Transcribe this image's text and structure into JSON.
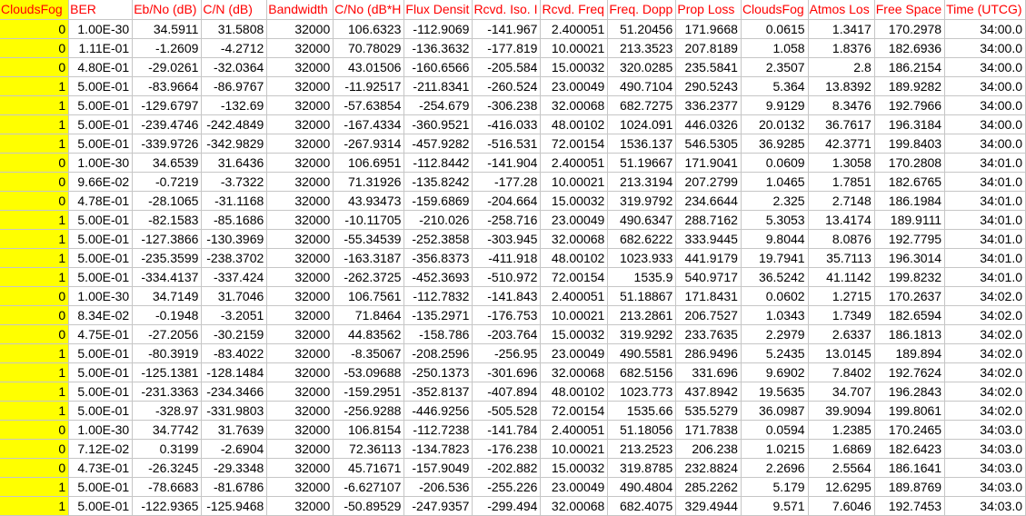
{
  "sheet": {
    "highlight_color": "#ffff00",
    "header_color": "#ff0000",
    "headers": [
      "CloudsFog",
      "BER",
      "Eb/No (dB)",
      "C/N (dB)",
      "Bandwidth",
      "C/No (dB*H",
      "Flux Densit",
      "Rcvd. Iso. I",
      "Rcvd. Freq",
      "Freq. Dopp",
      "Prop Loss",
      "CloudsFog",
      "Atmos Los",
      "Free Space",
      "Time (UTCG)"
    ],
    "rows": [
      [
        "0",
        "1.00E-30",
        "34.5911",
        "31.5808",
        "32000",
        "106.6323",
        "-112.9069",
        "-141.967",
        "2.400051",
        "51.20456",
        "171.9668",
        "0.0615",
        "1.3417",
        "170.2978",
        "34:00.0"
      ],
      [
        "0",
        "1.11E-01",
        "-1.2609",
        "-4.2712",
        "32000",
        "70.78029",
        "-136.3632",
        "-177.819",
        "10.00021",
        "213.3523",
        "207.8189",
        "1.058",
        "1.8376",
        "182.6936",
        "34:00.0"
      ],
      [
        "0",
        "4.80E-01",
        "-29.0261",
        "-32.0364",
        "32000",
        "43.01506",
        "-160.6566",
        "-205.584",
        "15.00032",
        "320.0285",
        "235.5841",
        "2.3507",
        "2.8",
        "186.2154",
        "34:00.0"
      ],
      [
        "1",
        "5.00E-01",
        "-83.9664",
        "-86.9767",
        "32000",
        "-11.92517",
        "-211.8341",
        "-260.524",
        "23.00049",
        "490.7104",
        "290.5243",
        "5.364",
        "13.8392",
        "189.9282",
        "34:00.0"
      ],
      [
        "1",
        "5.00E-01",
        "-129.6797",
        "-132.69",
        "32000",
        "-57.63854",
        "-254.679",
        "-306.238",
        "32.00068",
        "682.7275",
        "336.2377",
        "9.9129",
        "8.3476",
        "192.7966",
        "34:00.0"
      ],
      [
        "1",
        "5.00E-01",
        "-239.4746",
        "-242.4849",
        "32000",
        "-167.4334",
        "-360.9521",
        "-416.033",
        "48.00102",
        "1024.091",
        "446.0326",
        "20.0132",
        "36.7617",
        "196.3184",
        "34:00.0"
      ],
      [
        "1",
        "5.00E-01",
        "-339.9726",
        "-342.9829",
        "32000",
        "-267.9314",
        "-457.9282",
        "-516.531",
        "72.00154",
        "1536.137",
        "546.5305",
        "36.9285",
        "42.3771",
        "199.8403",
        "34:00.0"
      ],
      [
        "0",
        "1.00E-30",
        "34.6539",
        "31.6436",
        "32000",
        "106.6951",
        "-112.8442",
        "-141.904",
        "2.400051",
        "51.19667",
        "171.9041",
        "0.0609",
        "1.3058",
        "170.2808",
        "34:01.0"
      ],
      [
        "0",
        "9.66E-02",
        "-0.7219",
        "-3.7322",
        "32000",
        "71.31926",
        "-135.8242",
        "-177.28",
        "10.00021",
        "213.3194",
        "207.2799",
        "1.0465",
        "1.7851",
        "182.6765",
        "34:01.0"
      ],
      [
        "0",
        "4.78E-01",
        "-28.1065",
        "-31.1168",
        "32000",
        "43.93473",
        "-159.6869",
        "-204.664",
        "15.00032",
        "319.9792",
        "234.6644",
        "2.325",
        "2.7148",
        "186.1984",
        "34:01.0"
      ],
      [
        "1",
        "5.00E-01",
        "-82.1583",
        "-85.1686",
        "32000",
        "-10.11705",
        "-210.026",
        "-258.716",
        "23.00049",
        "490.6347",
        "288.7162",
        "5.3053",
        "13.4174",
        "189.9111",
        "34:01.0"
      ],
      [
        "1",
        "5.00E-01",
        "-127.3866",
        "-130.3969",
        "32000",
        "-55.34539",
        "-252.3858",
        "-303.945",
        "32.00068",
        "682.6222",
        "333.9445",
        "9.8044",
        "8.0876",
        "192.7795",
        "34:01.0"
      ],
      [
        "1",
        "5.00E-01",
        "-235.3599",
        "-238.3702",
        "32000",
        "-163.3187",
        "-356.8373",
        "-411.918",
        "48.00102",
        "1023.933",
        "441.9179",
        "19.7941",
        "35.7113",
        "196.3014",
        "34:01.0"
      ],
      [
        "1",
        "5.00E-01",
        "-334.4137",
        "-337.424",
        "32000",
        "-262.3725",
        "-452.3693",
        "-510.972",
        "72.00154",
        "1535.9",
        "540.9717",
        "36.5242",
        "41.1142",
        "199.8232",
        "34:01.0"
      ],
      [
        "0",
        "1.00E-30",
        "34.7149",
        "31.7046",
        "32000",
        "106.7561",
        "-112.7832",
        "-141.843",
        "2.400051",
        "51.18867",
        "171.8431",
        "0.0602",
        "1.2715",
        "170.2637",
        "34:02.0"
      ],
      [
        "0",
        "8.34E-02",
        "-0.1948",
        "-3.2051",
        "32000",
        "71.8464",
        "-135.2971",
        "-176.753",
        "10.00021",
        "213.2861",
        "206.7527",
        "1.0343",
        "1.7349",
        "182.6594",
        "34:02.0"
      ],
      [
        "0",
        "4.75E-01",
        "-27.2056",
        "-30.2159",
        "32000",
        "44.83562",
        "-158.786",
        "-203.764",
        "15.00032",
        "319.9292",
        "233.7635",
        "2.2979",
        "2.6337",
        "186.1813",
        "34:02.0"
      ],
      [
        "1",
        "5.00E-01",
        "-80.3919",
        "-83.4022",
        "32000",
        "-8.35067",
        "-208.2596",
        "-256.95",
        "23.00049",
        "490.5581",
        "286.9496",
        "5.2435",
        "13.0145",
        "189.894",
        "34:02.0"
      ],
      [
        "1",
        "5.00E-01",
        "-125.1381",
        "-128.1484",
        "32000",
        "-53.09688",
        "-250.1373",
        "-301.696",
        "32.00068",
        "682.5156",
        "331.696",
        "9.6902",
        "7.8402",
        "192.7624",
        "34:02.0"
      ],
      [
        "1",
        "5.00E-01",
        "-231.3363",
        "-234.3466",
        "32000",
        "-159.2951",
        "-352.8137",
        "-407.894",
        "48.00102",
        "1023.773",
        "437.8942",
        "19.5635",
        "34.707",
        "196.2843",
        "34:02.0"
      ],
      [
        "1",
        "5.00E-01",
        "-328.97",
        "-331.9803",
        "32000",
        "-256.9288",
        "-446.9256",
        "-505.528",
        "72.00154",
        "1535.66",
        "535.5279",
        "36.0987",
        "39.9094",
        "199.8061",
        "34:02.0"
      ],
      [
        "0",
        "1.00E-30",
        "34.7742",
        "31.7639",
        "32000",
        "106.8154",
        "-112.7238",
        "-141.784",
        "2.400051",
        "51.18056",
        "171.7838",
        "0.0594",
        "1.2385",
        "170.2465",
        "34:03.0"
      ],
      [
        "0",
        "7.12E-02",
        "0.3199",
        "-2.6904",
        "32000",
        "72.36113",
        "-134.7823",
        "-176.238",
        "10.00021",
        "213.2523",
        "206.238",
        "1.0215",
        "1.6869",
        "182.6423",
        "34:03.0"
      ],
      [
        "0",
        "4.73E-01",
        "-26.3245",
        "-29.3348",
        "32000",
        "45.71671",
        "-157.9049",
        "-202.882",
        "15.00032",
        "319.8785",
        "232.8824",
        "2.2696",
        "2.5564",
        "186.1641",
        "34:03.0"
      ],
      [
        "1",
        "5.00E-01",
        "-78.6683",
        "-81.6786",
        "32000",
        "-6.627107",
        "-206.536",
        "-255.226",
        "23.00049",
        "490.4804",
        "285.2262",
        "5.179",
        "12.6295",
        "189.8769",
        "34:03.0"
      ],
      [
        "1",
        "5.00E-01",
        "-122.9365",
        "-125.9468",
        "32000",
        "-50.89529",
        "-247.9357",
        "-299.494",
        "32.00068",
        "682.4075",
        "329.4944",
        "9.571",
        "7.6046",
        "192.7453",
        "34:03.0"
      ]
    ]
  }
}
